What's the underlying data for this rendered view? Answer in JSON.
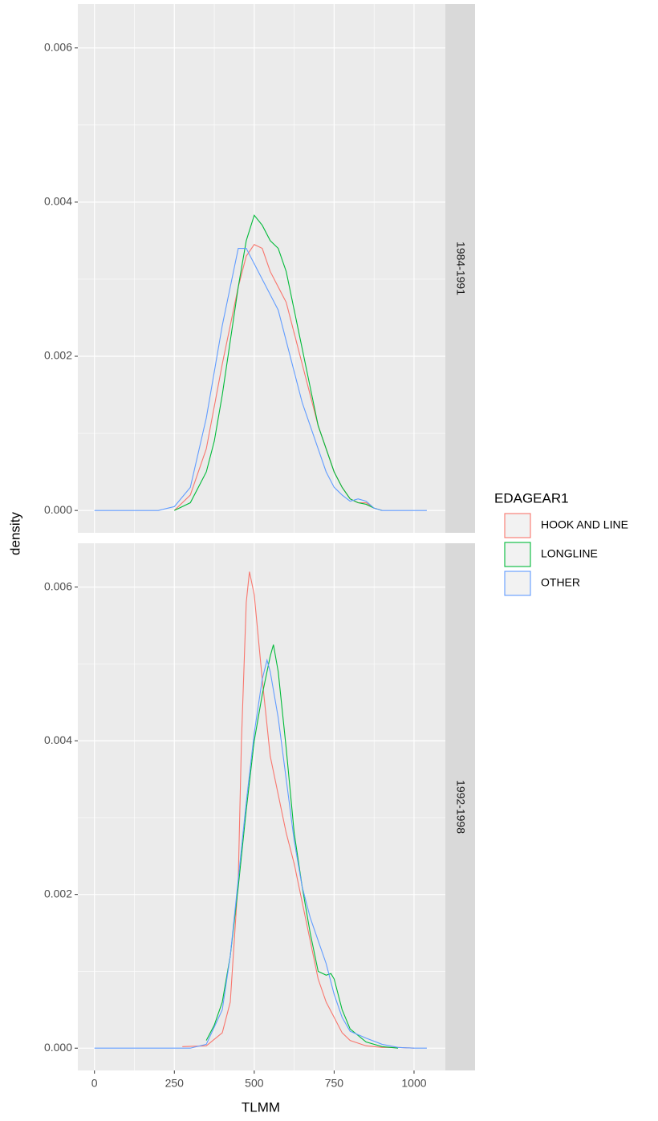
{
  "figure": {
    "xlabel": "TLMM",
    "ylabel": "density",
    "legend_title": "EDAGEAR1"
  },
  "chart_data": [
    {
      "type": "line",
      "facet": "1984-1991",
      "xlim": [
        -52,
        1098
      ],
      "xticks": [
        0,
        250,
        500,
        750,
        1000
      ],
      "ylim": [
        -0.00029,
        0.00657
      ],
      "yticks": [
        {
          "value": 0,
          "label": "0.000"
        },
        {
          "value": 0.002,
          "label": "0.002"
        },
        {
          "value": 0.004,
          "label": "0.004"
        },
        {
          "value": 0.006,
          "label": "0.006"
        }
      ],
      "grid": true,
      "series": [
        {
          "name": "HOOK AND LINE",
          "color": "#F8766D",
          "x": [
            250,
            300,
            350,
            400,
            450,
            475,
            500,
            525,
            550,
            575,
            600,
            625,
            650,
            675,
            700,
            725,
            750,
            775,
            800,
            825,
            850,
            875,
            900
          ],
          "values": [
            0,
            0.0002,
            0.0008,
            0.0019,
            0.0029,
            0.0033,
            0.00345,
            0.0034,
            0.0031,
            0.0029,
            0.0027,
            0.0023,
            0.0019,
            0.0015,
            0.0011,
            0.0008,
            0.0005,
            0.0003,
            0.00015,
            0.0001,
            0.0001,
            3e-05,
            0
          ]
        },
        {
          "name": "LONGLINE",
          "color": "#00BA38",
          "x": [
            250,
            300,
            350,
            375,
            400,
            425,
            450,
            475,
            500,
            525,
            550,
            575,
            600,
            625,
            650,
            675,
            700,
            725,
            750,
            775,
            800,
            825,
            850,
            875,
            900
          ],
          "values": [
            0,
            0.0001,
            0.0005,
            0.0009,
            0.0015,
            0.0022,
            0.0029,
            0.0035,
            0.00383,
            0.0037,
            0.0035,
            0.0034,
            0.0031,
            0.0026,
            0.0021,
            0.0016,
            0.0011,
            0.0008,
            0.0005,
            0.0003,
            0.00015,
            0.0001,
            8e-05,
            3e-05,
            0
          ]
        },
        {
          "name": "OTHER",
          "color": "#619CFF",
          "x": [
            0,
            200,
            250,
            300,
            350,
            375,
            400,
            425,
            450,
            475,
            500,
            525,
            550,
            575,
            600,
            625,
            650,
            675,
            700,
            725,
            750,
            775,
            800,
            825,
            850,
            875,
            900,
            1040
          ],
          "values": [
            0,
            0,
            5e-05,
            0.0003,
            0.0012,
            0.0018,
            0.0024,
            0.0029,
            0.0034,
            0.0034,
            0.0032,
            0.003,
            0.0028,
            0.0026,
            0.0022,
            0.0018,
            0.0014,
            0.0011,
            0.0008,
            0.0005,
            0.0003,
            0.0002,
            0.00012,
            0.00015,
            0.00012,
            3e-05,
            0,
            0
          ]
        }
      ]
    },
    {
      "type": "line",
      "facet": "1992-1998",
      "xlim": [
        -52,
        1098
      ],
      "xticks": [
        0,
        250,
        500,
        750,
        1000
      ],
      "ylim": [
        -0.00029,
        0.00657
      ],
      "yticks": [
        {
          "value": 0,
          "label": "0.000"
        },
        {
          "value": 0.002,
          "label": "0.002"
        },
        {
          "value": 0.004,
          "label": "0.004"
        },
        {
          "value": 0.006,
          "label": "0.006"
        }
      ],
      "grid": true,
      "series": [
        {
          "name": "HOOK AND LINE",
          "color": "#F8766D",
          "x": [
            275,
            350,
            400,
            425,
            450,
            460,
            475,
            485,
            500,
            525,
            550,
            575,
            600,
            625,
            650,
            675,
            700,
            725,
            750,
            775,
            800,
            850,
            900,
            950,
            1000
          ],
          "values": [
            2e-05,
            3e-05,
            0.0002,
            0.0006,
            0.0022,
            0.004,
            0.0058,
            0.0062,
            0.0059,
            0.0048,
            0.0038,
            0.0033,
            0.0028,
            0.0024,
            0.0019,
            0.0014,
            0.0009,
            0.0006,
            0.0004,
            0.0002,
            0.0001,
            3e-05,
            1e-05,
            1e-05,
            0
          ]
        },
        {
          "name": "LONGLINE",
          "color": "#00BA38",
          "x": [
            350,
            375,
            400,
            425,
            450,
            475,
            500,
            525,
            550,
            560,
            575,
            600,
            625,
            650,
            675,
            700,
            725,
            740,
            750,
            775,
            800,
            850,
            900,
            950
          ],
          "values": [
            0.0001,
            0.0003,
            0.0006,
            0.0012,
            0.0021,
            0.0031,
            0.004,
            0.0046,
            0.0051,
            0.00525,
            0.0049,
            0.0039,
            0.0028,
            0.0021,
            0.0015,
            0.001,
            0.00095,
            0.00097,
            0.0009,
            0.0005,
            0.00025,
            8e-05,
            2e-05,
            0
          ]
        },
        {
          "name": "OTHER",
          "color": "#619CFF",
          "x": [
            0,
            300,
            350,
            400,
            425,
            450,
            475,
            500,
            525,
            540,
            550,
            575,
            600,
            625,
            650,
            675,
            700,
            725,
            750,
            775,
            800,
            850,
            900,
            950,
            1000,
            1040
          ],
          "values": [
            0,
            0,
            5e-05,
            0.0005,
            0.0012,
            0.0022,
            0.0032,
            0.0041,
            0.0048,
            0.00505,
            0.0049,
            0.0043,
            0.0035,
            0.0027,
            0.0021,
            0.0017,
            0.0014,
            0.0011,
            0.0007,
            0.0004,
            0.00022,
            0.00013,
            5e-05,
            1e-05,
            0,
            0
          ]
        }
      ]
    }
  ]
}
